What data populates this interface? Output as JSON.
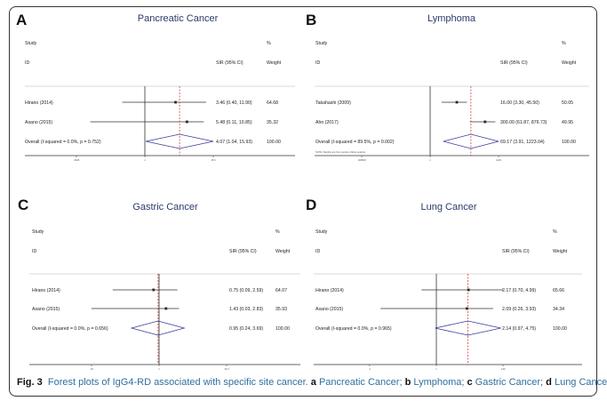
{
  "caption": {
    "label": "Fig. 3",
    "text": "Forest plots of IgG4-RD associated with specific site cancer.",
    "parts": [
      {
        "letter": "a",
        "text": "Pancreatic Cancer;"
      },
      {
        "letter": "b",
        "text": "Lymphoma;"
      },
      {
        "letter": "c",
        "text": "Gastric Cancer;"
      },
      {
        "letter": "d",
        "text": "Lung Cancer"
      }
    ]
  },
  "colors": {
    "title": "#2b3a6b",
    "diamond": "#3b3b9a",
    "reference_line": "#cc2222",
    "text": "#222222"
  },
  "chart_data": [
    {
      "type": "forest",
      "panel": "A",
      "title": "Pancreatic Cancer",
      "headers": {
        "study": "Study",
        "id": "ID",
        "effect": "SIR (95% CI)",
        "pct": "%",
        "weight": "Weight"
      },
      "scale": "log",
      "ticks": [
        0.0628,
        1,
        15.9
      ],
      "tick_labels": [
        ".0628",
        "1",
        "15.9"
      ],
      "studies": [
        {
          "name": "Hirano (2014)",
          "sir": 3.46,
          "lo": 0.4,
          "hi": 11.9,
          "label": "3.46 (0.40, 11.90)",
          "weight": "64.68"
        },
        {
          "name": "Asano (2015)",
          "sir": 5.48,
          "lo": 0.11,
          "hi": 10.85,
          "label": "5.48 (0.11, 10.85)",
          "weight": "35.32"
        }
      ],
      "overall": {
        "name": "Overall  (I-squared = 0.0%, p = 0.752)",
        "sir": 4.07,
        "lo": 1.04,
        "hi": 15.93,
        "label": "4.07 (1.04, 15.93)",
        "weight": "100.00"
      }
    },
    {
      "type": "forest",
      "panel": "B",
      "title": "Lymphoma",
      "headers": {
        "study": "Study",
        "id": "ID",
        "effect": "SIR (95% CI)",
        "pct": "%",
        "weight": "Weight"
      },
      "scale": "log",
      "ticks": [
        0.000818,
        1,
        1223
      ],
      "tick_labels": [
        ".000818",
        "1",
        "1223"
      ],
      "studies": [
        {
          "name": "Takahashi (2009)",
          "sir": 16.0,
          "lo": 3.3,
          "hi": 45.5,
          "label": "16.00 (3.30, 45.50)",
          "weight": "50.05"
        },
        {
          "name": "Ahn (2017)",
          "sir": 300.0,
          "lo": 61.87,
          "hi": 876.73,
          "label": "300.00 (61.87, 876.73)",
          "weight": "49.95"
        }
      ],
      "overall": {
        "name": "Overall  (I-squared = 89.5%, p = 0.002)",
        "sir": 69.17,
        "lo": 3.91,
        "hi": 1223.04,
        "label": "69.17 (3.91, 1223.04)",
        "weight": "100.00"
      },
      "note": "NOTE: Weights are from random effects analysis"
    },
    {
      "type": "forest",
      "panel": "C",
      "title": "Gastric Cancer",
      "headers": {
        "study": "Study",
        "id": "ID",
        "effect": "SIR (95% CI)",
        "pct": "%",
        "weight": "Weight"
      },
      "scale": "log",
      "ticks": [
        0.03,
        1,
        33.3
      ],
      "tick_labels": [
        ".03",
        "1",
        "33.3"
      ],
      "studies": [
        {
          "name": "Hirano (2014)",
          "sir": 0.75,
          "lo": 0.09,
          "hi": 2.59,
          "label": "0.75 (0.09, 2.59)",
          "weight": "64.07"
        },
        {
          "name": "Asano (2015)",
          "sir": 1.43,
          "lo": 0.03,
          "hi": 2.83,
          "label": "1.43 (0.03, 2.83)",
          "weight": "35.93"
        }
      ],
      "overall": {
        "name": "Overall  (I-squared = 0.0%, p = 0.656)",
        "sir": 0.95,
        "lo": 0.24,
        "hi": 3.69,
        "label": "0.95 (0.24, 3.69)",
        "weight": "100.00"
      }
    },
    {
      "type": "forest",
      "panel": "D",
      "title": "Lung Cancer",
      "headers": {
        "study": "Study",
        "id": "ID",
        "effect": "SIR (95% CI)",
        "pct": "%",
        "weight": "Weight"
      },
      "scale": "log",
      "ticks": [
        0.2,
        1,
        4.99
      ],
      "tick_labels": [
        ".2",
        "1",
        "4.99"
      ],
      "studies": [
        {
          "name": "Hirano (2014)",
          "sir": 2.17,
          "lo": 0.7,
          "hi": 4.99,
          "label": "2.17 (0.70, 4.99)",
          "weight": "65.66"
        },
        {
          "name": "Asano (2015)",
          "sir": 2.09,
          "lo": 0.26,
          "hi": 3.93,
          "label": "2.09 (0.26, 3.93)",
          "weight": "34.34"
        }
      ],
      "overall": {
        "name": "Overall  (I-squared = 0.0%, p = 0.965)",
        "sir": 2.14,
        "lo": 0.97,
        "hi": 4.75,
        "label": "2.14 (0.97, 4.75)",
        "weight": "100.00"
      }
    }
  ]
}
